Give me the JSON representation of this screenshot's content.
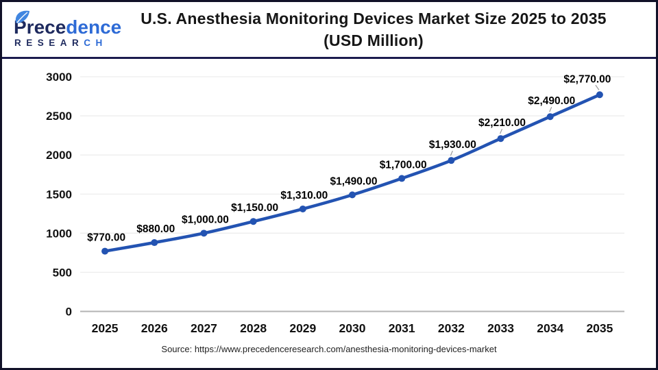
{
  "logo": {
    "brand_part1": "Prece",
    "brand_part2": "dence",
    "research_part1": "RESEAR",
    "research_part2": "CH",
    "navy": "#1e2a5e",
    "blue": "#2e6bd6",
    "leaf_color": "#4186e0"
  },
  "header": {
    "title_line1": "U.S. Anesthesia Monitoring Devices Market Size 2025 to 2035",
    "title_line2": "(USD Million)"
  },
  "chart_data": {
    "type": "line",
    "title": "U.S. Anesthesia Monitoring Devices Market Size 2025 to 2035 (USD Million)",
    "categories": [
      "2025",
      "2026",
      "2027",
      "2028",
      "2029",
      "2030",
      "2031",
      "2032",
      "2033",
      "2034",
      "2035"
    ],
    "values": [
      770,
      880,
      1000,
      1150,
      1310,
      1490,
      1700,
      1930,
      2210,
      2490,
      2770
    ],
    "point_labels": [
      "$770.00",
      "$880.00",
      "$1,000.00",
      "$1,150.00",
      "$1,310.00",
      "$1,490.00",
      "$1,700.00",
      "$1,930.00",
      "$2,210.00",
      "$2,490.00",
      "$2,770.00"
    ],
    "xlabel": "",
    "ylabel": "",
    "ylim": [
      0,
      3000
    ],
    "yticks": [
      0,
      500,
      1000,
      1500,
      2000,
      2500,
      3000
    ],
    "ytick_labels": [
      "0",
      "500",
      "1000",
      "1500",
      "2000",
      "2500",
      "3000"
    ],
    "grid": "horizontal",
    "legend": "none",
    "line_color": "#2353b2",
    "marker_color": "#2353b2",
    "gridline_color": "#ededed",
    "axis_line_color": "#b3b3b3",
    "label_color": "#000000",
    "tick_color": "#111111",
    "leader_line_color": "#999999"
  },
  "footer": {
    "source_text": "Source: https://www.precedenceresearch.com/anesthesia-monitoring-devices-market"
  }
}
